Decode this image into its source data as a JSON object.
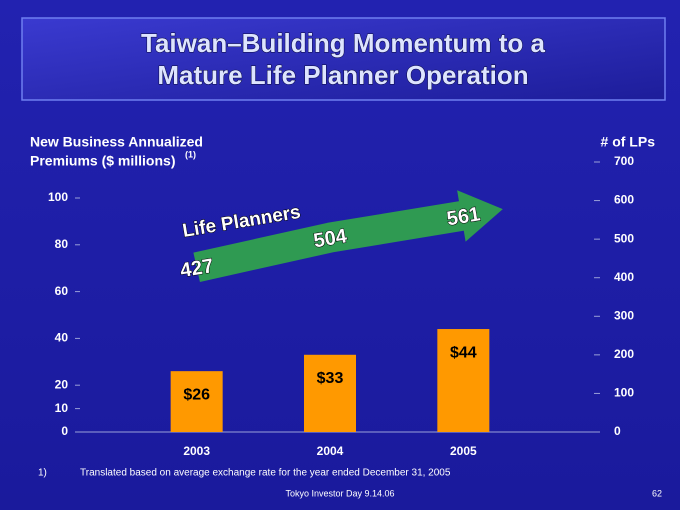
{
  "chart_data": {
    "type": "bar",
    "title": [
      "Taiwan–Building Momentum to a",
      "Mature Life Planner Operation"
    ],
    "ylabel": [
      "New Business Annualized",
      "Premiums ($ millions)"
    ],
    "ylabel_note": "(1)",
    "y2label": "# of LPs",
    "categories": [
      "2003",
      "2004",
      "2005"
    ],
    "values": [
      26,
      33,
      44
    ],
    "value_labels": [
      "$26",
      "$33",
      "$44"
    ],
    "color": "#ff9900",
    "ylim": [
      0,
      100
    ],
    "yticks": [
      0,
      10,
      20,
      40,
      60,
      80,
      100
    ],
    "y2lim": [
      0,
      700
    ],
    "y2ticks": [
      0,
      100,
      200,
      300,
      400,
      500,
      600,
      700
    ],
    "series": [
      {
        "name": "Life Planners",
        "color": "#2f9a52",
        "axis": "y2",
        "values": [
          427,
          504,
          561
        ]
      }
    ],
    "footnote": {
      "marker": "1)",
      "text": "Translated based on average exchange rate for the year ended December 31, 2005"
    },
    "footer": "Tokyo Investor Day 9.14.06",
    "page": "62"
  }
}
